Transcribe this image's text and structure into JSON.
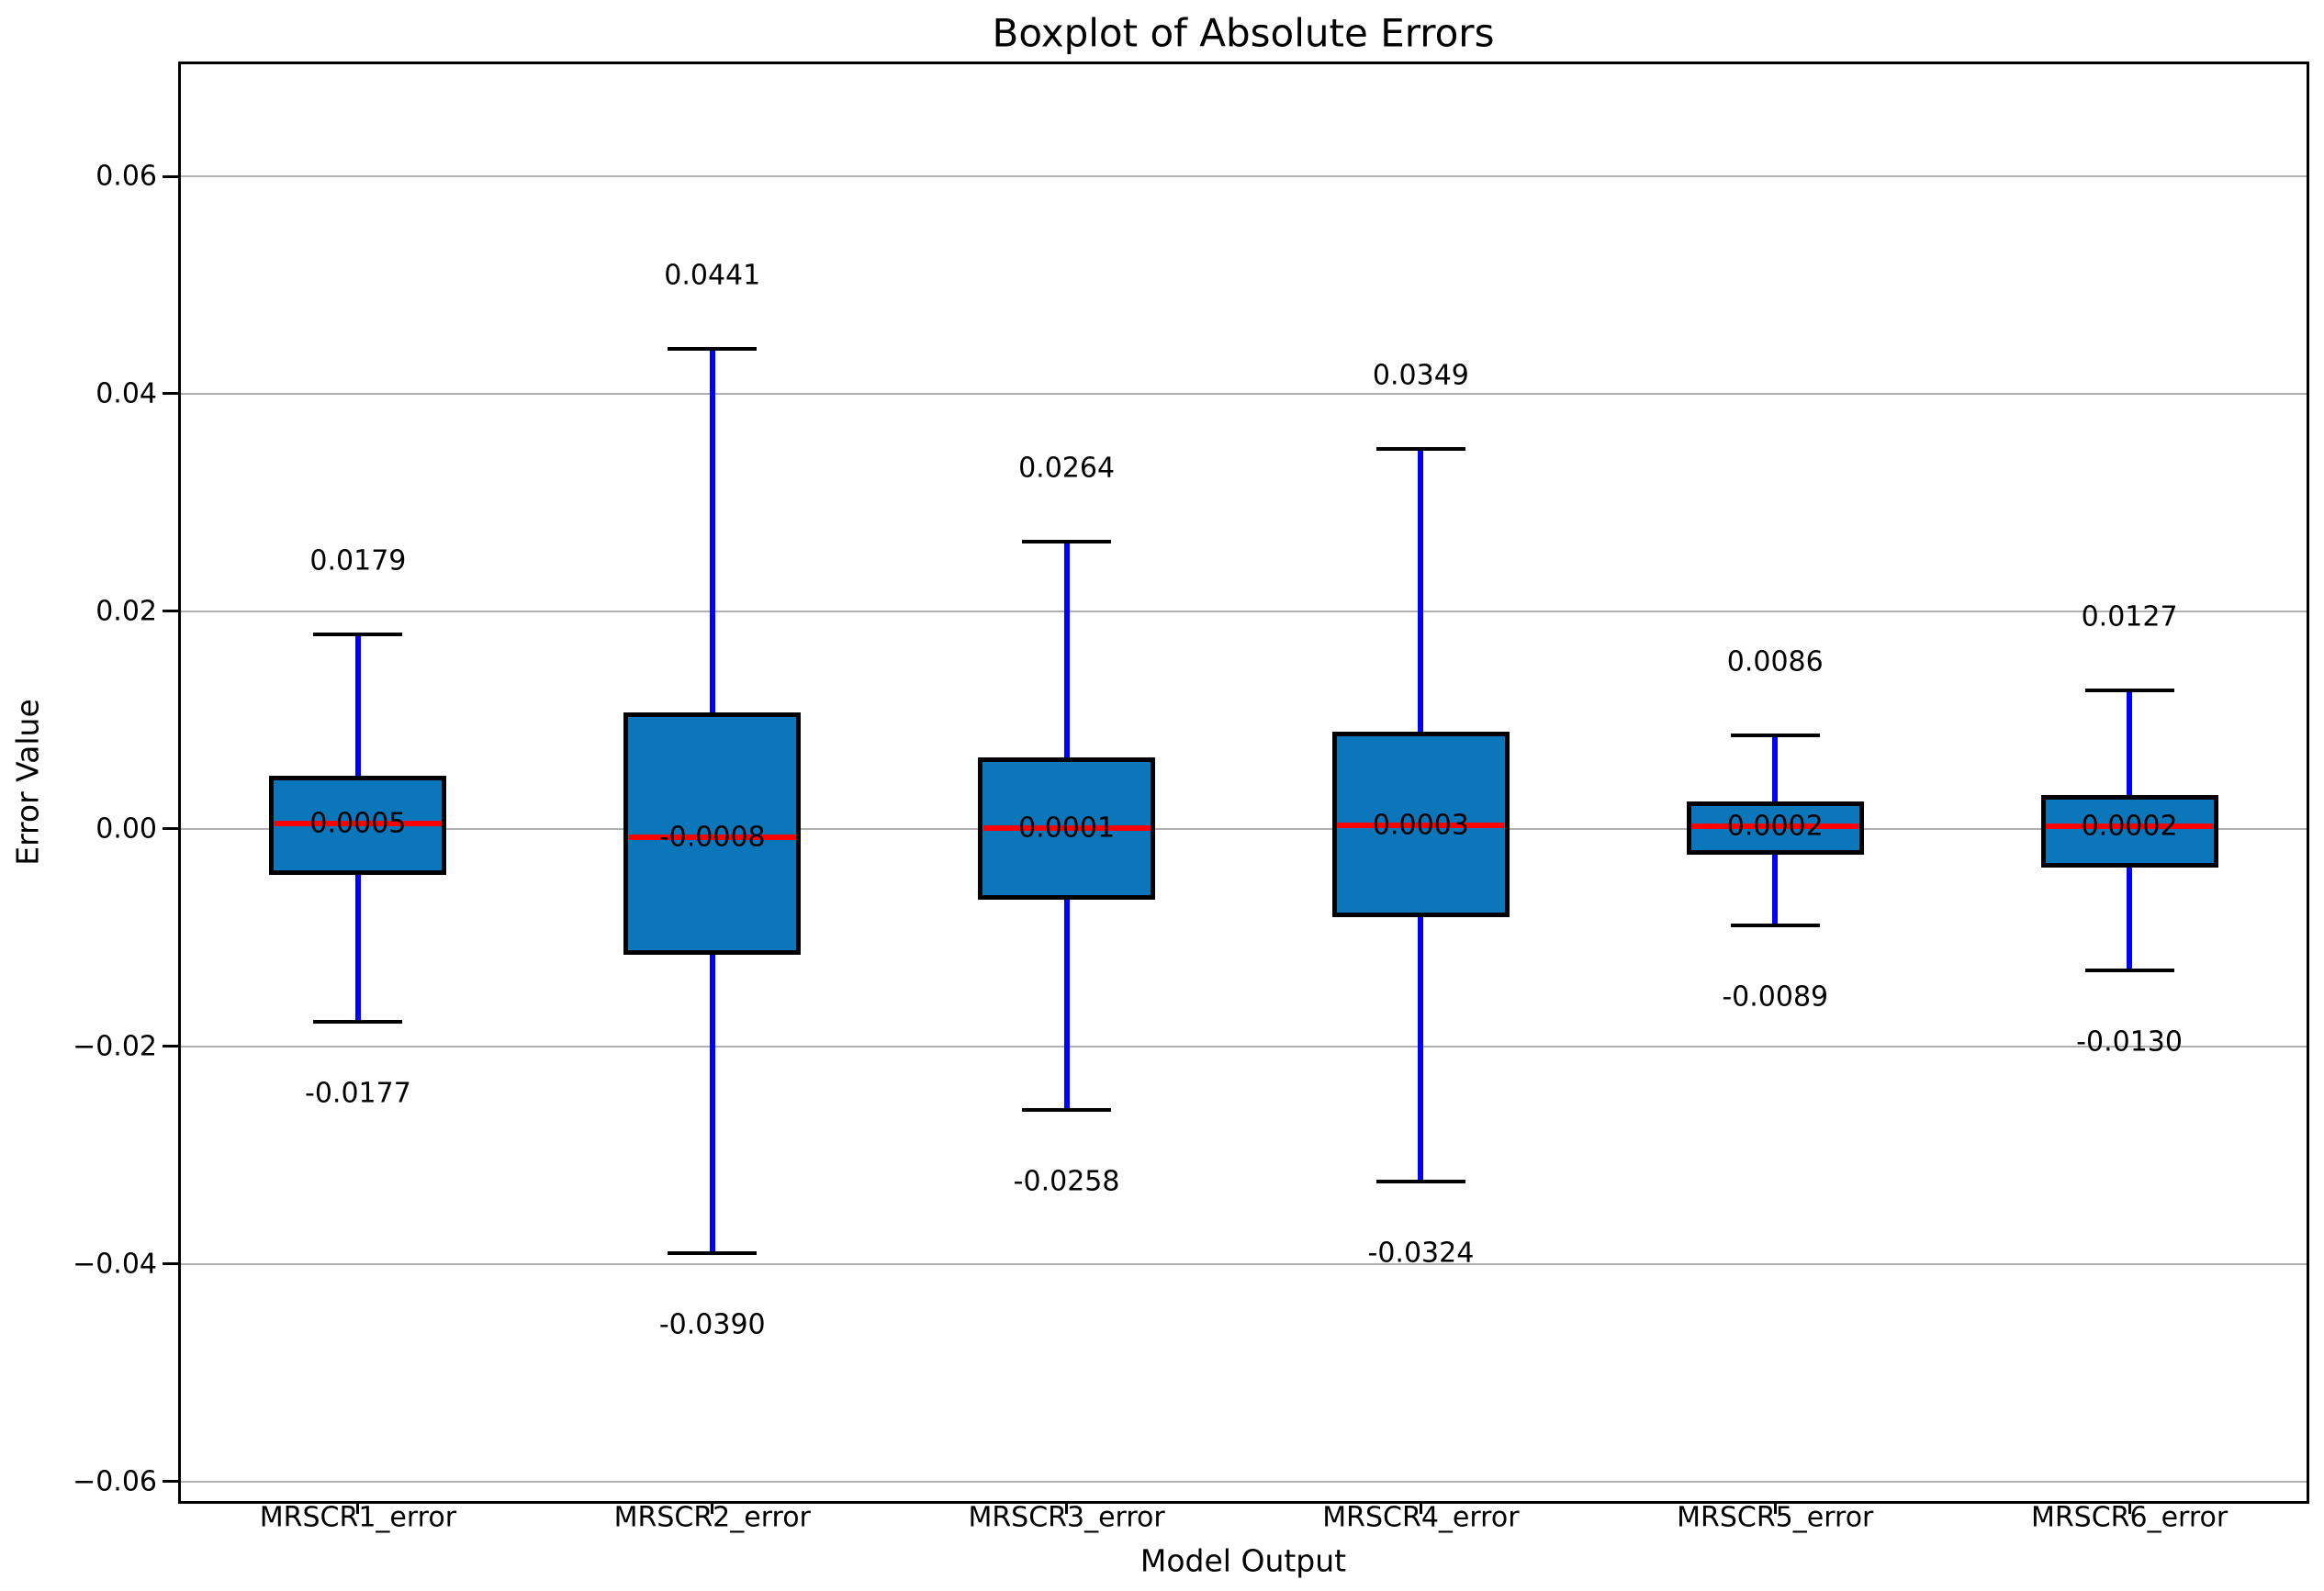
{
  "chart_data": {
    "type": "boxplot",
    "title": "Boxplot of Absolute Errors",
    "xlabel": "Model Output",
    "ylabel": "Error Value",
    "categories": [
      "MRSCR1_error",
      "MRSCR2_error",
      "MRSCR3_error",
      "MRSCR4_error",
      "MRSCR5_error",
      "MRSCR6_error"
    ],
    "ylim": [
      -0.0618,
      0.0703
    ],
    "grid": "horizontal",
    "legend": null,
    "y_ticks": {
      "values": [
        0.06,
        0.04,
        0.02,
        0.0,
        -0.02,
        -0.04,
        -0.06
      ],
      "labels": [
        "0.06",
        "0.04",
        "0.02",
        "0.00",
        "−0.02",
        "−0.04",
        "−0.06"
      ]
    },
    "boxes": [
      {
        "category": "MRSCR1_error",
        "whisker_high": 0.0179,
        "q3": 0.0049,
        "median": 0.0005,
        "q1": -0.0042,
        "whisker_low": -0.0177,
        "labels": {
          "max": "0.0179",
          "median": "0.0005",
          "min": "-0.0177"
        }
      },
      {
        "category": "MRSCR2_error",
        "whisker_high": 0.0441,
        "q3": 0.0107,
        "median": -0.0008,
        "q1": -0.0116,
        "whisker_low": -0.039,
        "labels": {
          "max": "0.0441",
          "median": "-0.0008",
          "min": "-0.0390"
        }
      },
      {
        "category": "MRSCR3_error",
        "whisker_high": 0.0264,
        "q3": 0.0066,
        "median": 0.0001,
        "q1": -0.0065,
        "whisker_low": -0.0258,
        "labels": {
          "max": "0.0264",
          "median": "0.0001",
          "min": "-0.0258"
        }
      },
      {
        "category": "MRSCR4_error",
        "whisker_high": 0.0349,
        "q3": 0.0089,
        "median": 0.0003,
        "q1": -0.0081,
        "whisker_low": -0.0324,
        "labels": {
          "max": "0.0349",
          "median": "0.0003",
          "min": "-0.0324"
        }
      },
      {
        "category": "MRSCR5_error",
        "whisker_high": 0.0086,
        "q3": 0.0025,
        "median": 0.0002,
        "q1": -0.0024,
        "whisker_low": -0.0089,
        "labels": {
          "max": "0.0086",
          "median": "0.0002",
          "min": "-0.0089"
        }
      },
      {
        "category": "MRSCR6_error",
        "whisker_high": 0.0127,
        "q3": 0.0031,
        "median": 0.0002,
        "q1": -0.0036,
        "whisker_low": -0.013,
        "labels": {
          "max": "0.0127",
          "median": "0.0002",
          "min": "-0.0130"
        }
      }
    ],
    "colors": {
      "box_fill": "#0b76b9",
      "box_edge": "#000000",
      "median": "#ff0000",
      "whisker": "#0000ff",
      "cap": "#000000",
      "grid": "#b0b0b0",
      "spine": "#000000",
      "text": "#000000",
      "background": "#ffffff"
    }
  }
}
